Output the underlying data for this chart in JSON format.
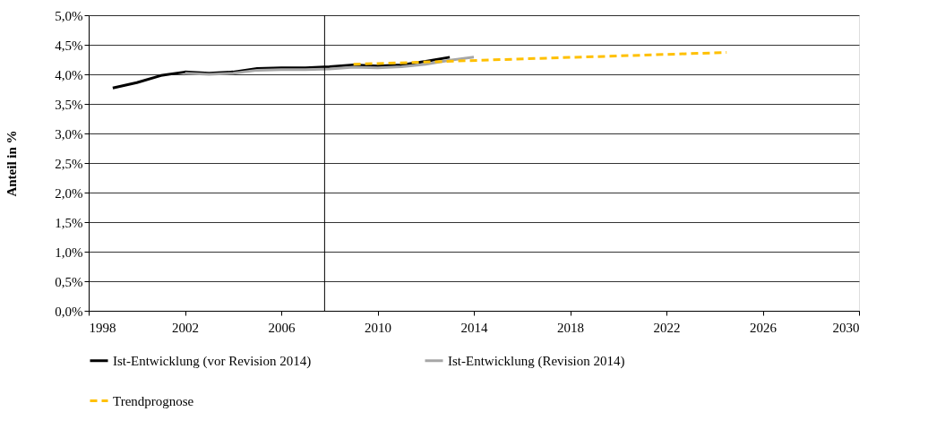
{
  "chart_data": {
    "type": "line",
    "ylabel": "Anteil in %",
    "series": [
      {
        "name": "Ist-Entwicklung (vor Revision 2014)",
        "color": "#000000",
        "x": [
          1999,
          2000,
          2001,
          2002,
          2003,
          2004,
          2005,
          2006,
          2007,
          2008,
          2009,
          2010,
          2011,
          2012,
          2013
        ],
        "values": [
          3.77,
          3.86,
          3.98,
          4.04,
          4.02,
          4.04,
          4.1,
          4.11,
          4.11,
          4.13,
          4.16,
          4.14,
          4.16,
          4.22,
          4.29
        ]
      },
      {
        "name": "Ist-Entwicklung (Revision 2014)",
        "color": "#a6a6a6",
        "x": [
          2002,
          2003,
          2004,
          2005,
          2006,
          2007,
          2008,
          2009,
          2010,
          2011,
          2012,
          2013,
          2014
        ],
        "values": [
          4.02,
          4.0,
          4.02,
          4.07,
          4.08,
          4.08,
          4.09,
          4.12,
          4.11,
          4.13,
          4.17,
          4.24,
          4.29
        ]
      },
      {
        "name": "Trendprognose",
        "color": "#ffc000",
        "line_style": "dashed",
        "x": [
          2009,
          2024.5
        ],
        "values": [
          4.17,
          4.37
        ]
      }
    ],
    "xlim": [
      1998,
      2030
    ],
    "xticks": [
      1998,
      2002,
      2006,
      2010,
      2014,
      2018,
      2022,
      2026,
      2030
    ],
    "ylim": [
      0,
      5
    ],
    "yticks": [
      {
        "value": 0,
        "label": "0,0%"
      },
      {
        "value": 0.5,
        "label": "0,5%"
      },
      {
        "value": 1,
        "label": "1,0%"
      },
      {
        "value": 1.5,
        "label": "1,5%"
      },
      {
        "value": 2,
        "label": "2,0%"
      },
      {
        "value": 2.5,
        "label": "2,5%"
      },
      {
        "value": 3,
        "label": "3,0%"
      },
      {
        "value": 3.5,
        "label": "3,5%"
      },
      {
        "value": 4,
        "label": "4,0%"
      },
      {
        "value": 4.5,
        "label": "4,5%"
      },
      {
        "value": 5,
        "label": "5,0%"
      }
    ],
    "ref_lines": [
      {
        "axis": "x",
        "value": 2007.8,
        "color": "#000000"
      }
    ],
    "grid": "y",
    "legend": "bottom",
    "marker": "none"
  }
}
